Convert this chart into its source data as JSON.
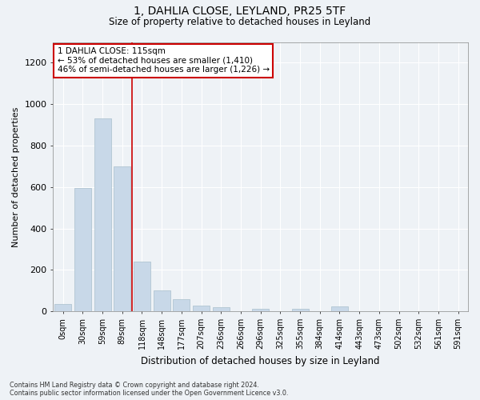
{
  "title": "1, DAHLIA CLOSE, LEYLAND, PR25 5TF",
  "subtitle": "Size of property relative to detached houses in Leyland",
  "xlabel": "Distribution of detached houses by size in Leyland",
  "ylabel": "Number of detached properties",
  "bar_color": "#c8d8e8",
  "bar_edgecolor": "#a8bfcc",
  "categories": [
    "0sqm",
    "30sqm",
    "59sqm",
    "89sqm",
    "118sqm",
    "148sqm",
    "177sqm",
    "207sqm",
    "236sqm",
    "266sqm",
    "296sqm",
    "325sqm",
    "355sqm",
    "384sqm",
    "414sqm",
    "443sqm",
    "473sqm",
    "502sqm",
    "532sqm",
    "561sqm",
    "591sqm"
  ],
  "values": [
    35,
    595,
    930,
    700,
    240,
    100,
    58,
    28,
    18,
    0,
    12,
    0,
    12,
    0,
    22,
    0,
    0,
    0,
    0,
    0,
    0
  ],
  "marker_index": 4,
  "marker_line_color": "#cc0000",
  "annotation_line1": "1 DAHLIA CLOSE: 115sqm",
  "annotation_line2": "← 53% of detached houses are smaller (1,410)",
  "annotation_line3": "46% of semi-detached houses are larger (1,226) →",
  "annotation_box_color": "#ffffff",
  "annotation_box_edgecolor": "#cc0000",
  "ylim": [
    0,
    1300
  ],
  "yticks": [
    0,
    200,
    400,
    600,
    800,
    1000,
    1200
  ],
  "footer_line1": "Contains HM Land Registry data © Crown copyright and database right 2024.",
  "footer_line2": "Contains public sector information licensed under the Open Government Licence v3.0.",
  "background_color": "#eef2f6",
  "grid_color": "#ffffff"
}
